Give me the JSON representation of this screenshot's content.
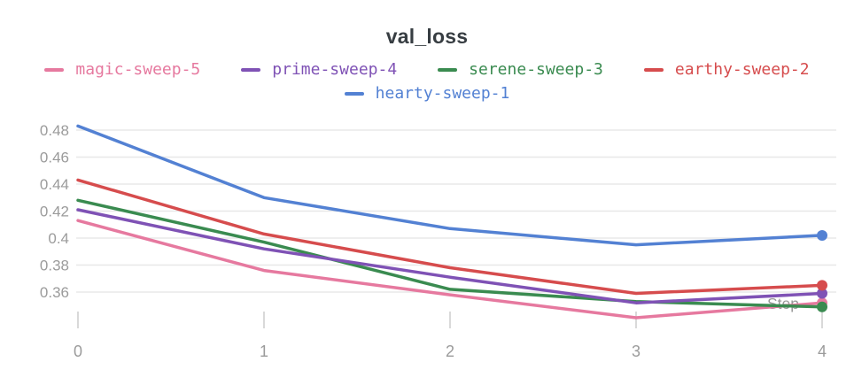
{
  "chart_data": {
    "type": "line",
    "title": "val_loss",
    "xlabel": "Step",
    "x": [
      0,
      1,
      2,
      3,
      4
    ],
    "xtick_labels": [
      "0",
      "1",
      "2",
      "3",
      "4"
    ],
    "yticks": [
      0.48,
      0.46,
      0.44,
      0.42,
      0.4,
      0.38,
      0.36
    ],
    "ytick_labels": [
      "0.48",
      "0.46",
      "0.44",
      "0.42",
      "0.4",
      "0.38",
      "0.36"
    ],
    "ylim": [
      0.338,
      0.49
    ],
    "xlim": [
      0,
      4
    ],
    "grid": "horizontal",
    "legend_position": "top",
    "series": [
      {
        "name": "magic-sweep-5",
        "color": "#e6799f",
        "values": [
          0.413,
          0.376,
          0.358,
          0.341,
          0.352
        ]
      },
      {
        "name": "prime-sweep-4",
        "color": "#7f52b5",
        "values": [
          0.421,
          0.392,
          0.371,
          0.352,
          0.359
        ]
      },
      {
        "name": "serene-sweep-3",
        "color": "#3a8b50",
        "values": [
          0.428,
          0.397,
          0.362,
          0.353,
          0.349
        ]
      },
      {
        "name": "earthy-sweep-2",
        "color": "#d64c4d",
        "values": [
          0.443,
          0.403,
          0.378,
          0.359,
          0.365
        ]
      },
      {
        "name": "hearty-sweep-1",
        "color": "#5381d3",
        "values": [
          0.483,
          0.43,
          0.407,
          0.395,
          0.402
        ]
      }
    ],
    "colors": {
      "title_text": "#373d42",
      "axis_text": "#9b9b9b",
      "gridline": "#e8e8e8",
      "tick_mark": "#d9d9d9",
      "step_label": "#999999"
    }
  }
}
